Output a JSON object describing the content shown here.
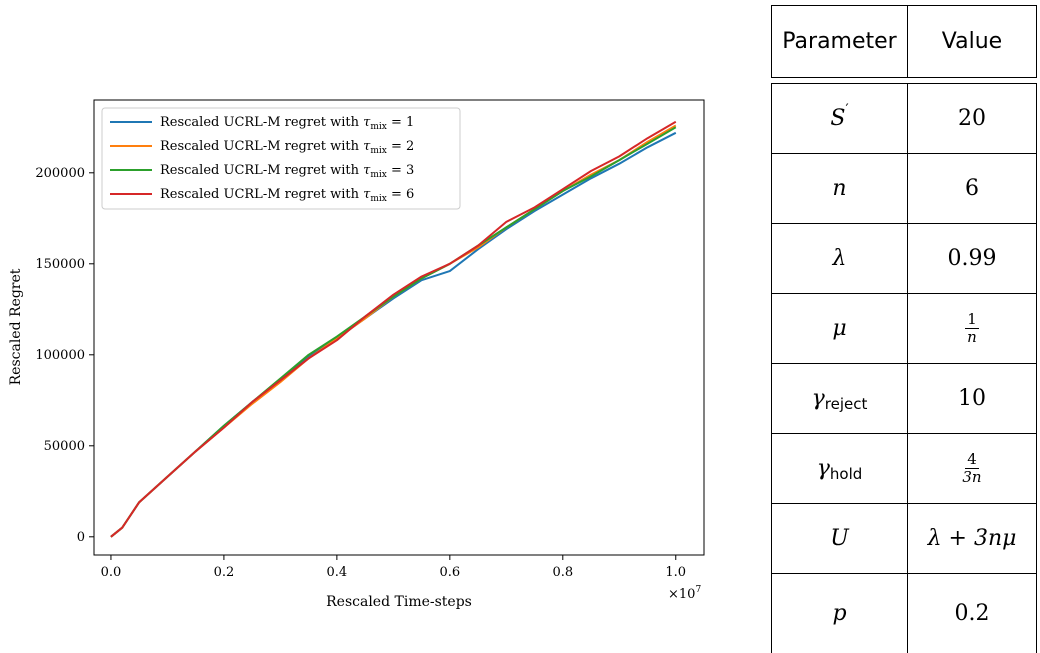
{
  "chart_data": {
    "type": "line",
    "title": "",
    "xlabel": "Rescaled Time-steps",
    "ylabel": "Rescaled Regret",
    "x_multiplier": "×10",
    "x_multiplier_exp": "7",
    "xlim": [
      -0.03,
      1.05
    ],
    "ylim": [
      -10000,
      240000
    ],
    "x_ticks": [
      0.0,
      0.2,
      0.4,
      0.6,
      0.8,
      1.0
    ],
    "x_tick_labels": [
      "0.0",
      "0.2",
      "0.4",
      "0.6",
      "0.8",
      "1.0"
    ],
    "y_ticks": [
      0,
      50000,
      100000,
      150000,
      200000
    ],
    "y_tick_labels": [
      "0",
      "50000",
      "100000",
      "150000",
      "200000"
    ],
    "grid": false,
    "legend_position": "top-left",
    "legend_prefix": "Rescaled UCRL-M regret with",
    "series": [
      {
        "name": "Rescaled UCRL-M regret with τmix = 1",
        "tau": "1",
        "color": "#1f77b4",
        "x": [
          0,
          0.02,
          0.05,
          0.1,
          0.15,
          0.2,
          0.25,
          0.3,
          0.35,
          0.4,
          0.45,
          0.5,
          0.55,
          0.6,
          0.65,
          0.7,
          0.75,
          0.8,
          0.85,
          0.9,
          0.95,
          1.0
        ],
        "y": [
          0,
          5000,
          19000,
          33000,
          47000,
          61000,
          74000,
          86000,
          99000,
          109000,
          120000,
          131000,
          141000,
          146000,
          158000,
          169000,
          179000,
          188000,
          197000,
          205000,
          214000,
          222000
        ]
      },
      {
        "name": "Rescaled UCRL-M regret with τmix = 2",
        "tau": "2",
        "color": "#ff7f0e",
        "x": [
          0,
          0.02,
          0.05,
          0.1,
          0.15,
          0.2,
          0.25,
          0.3,
          0.35,
          0.4,
          0.45,
          0.5,
          0.55,
          0.6,
          0.65,
          0.7,
          0.75,
          0.8,
          0.85,
          0.9,
          0.95,
          1.0
        ],
        "y": [
          0,
          5000,
          19000,
          33000,
          47000,
          60000,
          73000,
          85000,
          98000,
          109000,
          120000,
          132000,
          142000,
          150000,
          159000,
          170000,
          180000,
          190000,
          199000,
          207000,
          217000,
          226000
        ]
      },
      {
        "name": "Rescaled UCRL-M regret with τmix = 3",
        "tau": "3",
        "color": "#2ca02c",
        "x": [
          0,
          0.02,
          0.05,
          0.1,
          0.15,
          0.2,
          0.25,
          0.3,
          0.35,
          0.4,
          0.45,
          0.5,
          0.55,
          0.6,
          0.65,
          0.7,
          0.75,
          0.8,
          0.85,
          0.9,
          0.95,
          1.0
        ],
        "y": [
          0,
          5000,
          19000,
          33000,
          47000,
          61000,
          74000,
          87000,
          100000,
          110000,
          121000,
          132000,
          142000,
          150000,
          160000,
          170000,
          180000,
          190000,
          198000,
          207000,
          216000,
          225000
        ]
      },
      {
        "name": "Rescaled UCRL-M regret with τmix = 6",
        "tau": "6",
        "color": "#d62728",
        "x": [
          0,
          0.02,
          0.05,
          0.1,
          0.15,
          0.2,
          0.25,
          0.3,
          0.35,
          0.4,
          0.45,
          0.5,
          0.55,
          0.6,
          0.65,
          0.7,
          0.75,
          0.8,
          0.85,
          0.9,
          0.95,
          1.0
        ],
        "y": [
          0,
          5000,
          19000,
          33000,
          47000,
          60000,
          74000,
          86000,
          98000,
          108000,
          121000,
          133000,
          143000,
          150000,
          160000,
          173000,
          181000,
          191000,
          201000,
          209000,
          219000,
          228000
        ]
      }
    ]
  },
  "table": {
    "header": {
      "param": "Parameter",
      "value": "Value"
    },
    "rows": {
      "s_prime": {
        "param_base": "S",
        "param_sup": "′",
        "value": "20"
      },
      "n": {
        "param": "n",
        "value": "6"
      },
      "lambda": {
        "param": "λ",
        "value": "0.99"
      },
      "mu": {
        "param": "μ",
        "value_num": "1",
        "value_den": "n"
      },
      "gamma_reject": {
        "param_base": "γ",
        "param_sub": "reject",
        "value": "10"
      },
      "gamma_hold": {
        "param_base": "γ",
        "param_sub": "hold",
        "value_num": "4",
        "value_den": "3n"
      },
      "u": {
        "param": "U",
        "value": "λ + 3nμ"
      },
      "p": {
        "param": "p",
        "value": "0.2"
      }
    }
  }
}
